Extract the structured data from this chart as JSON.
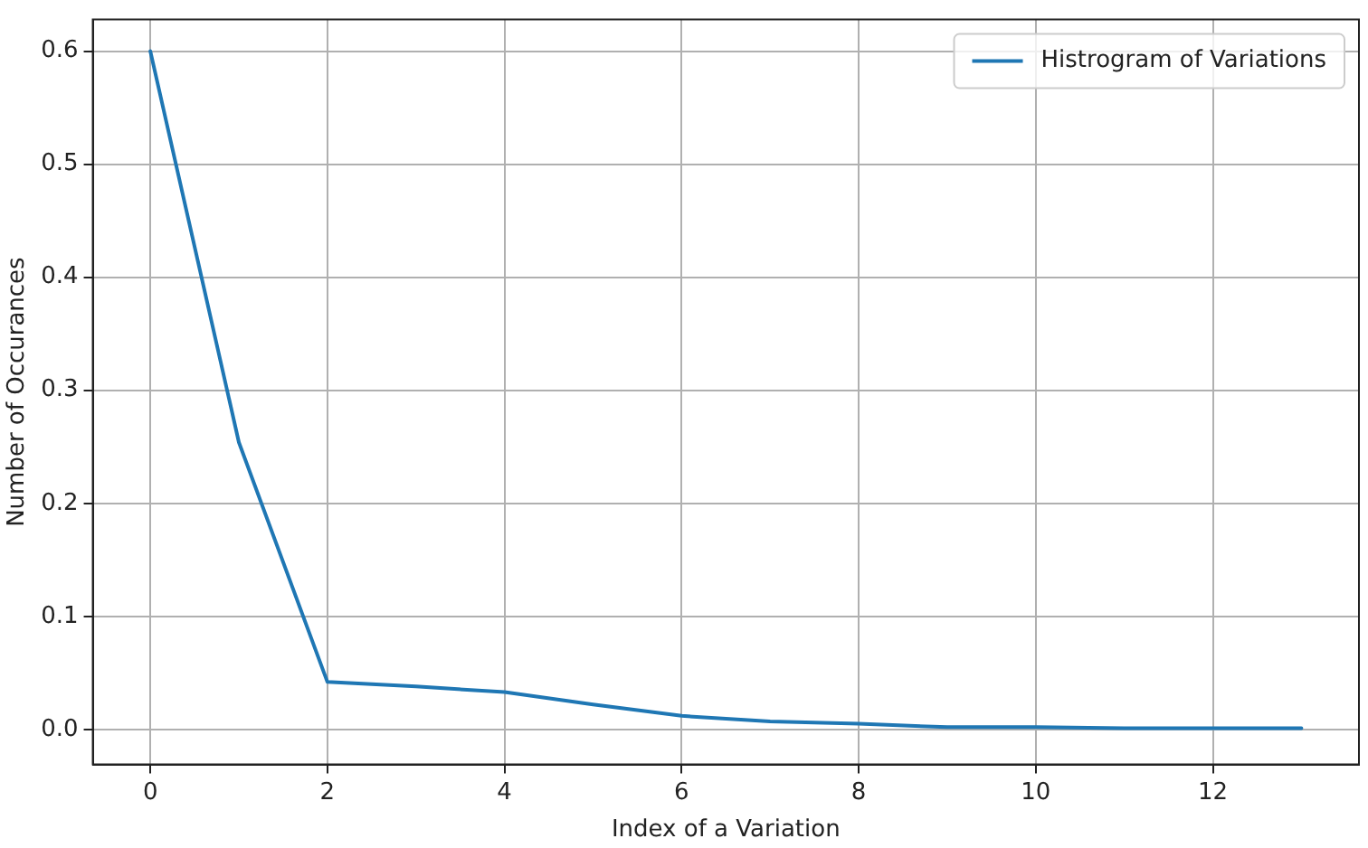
{
  "chart_data": {
    "type": "line",
    "xlabel": "Index of a Variation",
    "ylabel": "Number of Occurances",
    "series": [
      {
        "name": "Histrogram of Variations",
        "color": "#1f77b4",
        "x": [
          0,
          1,
          2,
          3,
          4,
          5,
          6,
          7,
          8,
          9,
          10,
          11,
          12,
          13
        ],
        "values": [
          0.6,
          0.254,
          0.042,
          0.038,
          0.033,
          0.022,
          0.012,
          0.007,
          0.005,
          0.002,
          0.002,
          0.001,
          0.001,
          0.001
        ]
      }
    ],
    "xlim": [
      -0.65,
      13.65
    ],
    "xticks": [
      0,
      2,
      4,
      6,
      8,
      10,
      12
    ],
    "ylim": [
      -0.031,
      0.628
    ],
    "yticks": [
      {
        "value": 0,
        "label": "0.0"
      },
      {
        "value": 0.1,
        "label": "0.1"
      },
      {
        "value": 0.2,
        "label": "0.2"
      },
      {
        "value": 0.3,
        "label": "0.3"
      },
      {
        "value": 0.4,
        "label": "0.4"
      },
      {
        "value": 0.5,
        "label": "0.5"
      },
      {
        "value": 0.6,
        "label": "0.6"
      }
    ],
    "grid": true,
    "legend": "top right",
    "marker": "none",
    "line_style": "solid"
  }
}
